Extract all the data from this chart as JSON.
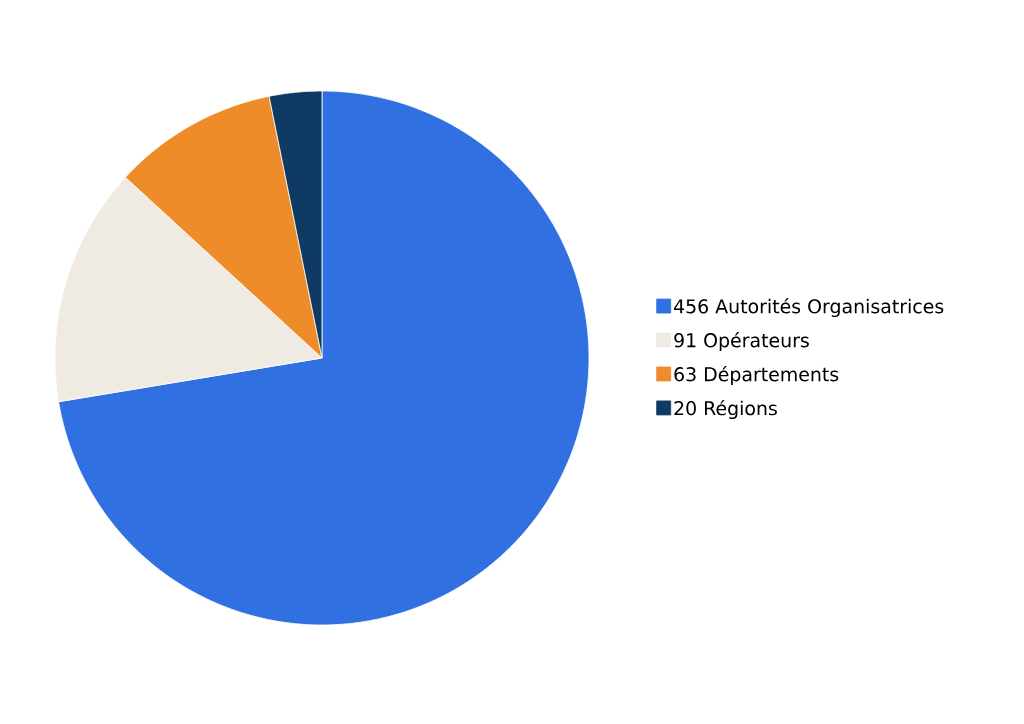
{
  "chart_data": {
    "type": "pie",
    "categories": [
      "456 Autorités Organisatrices",
      "91 Opérateurs",
      "63 Départements",
      "20 Régions"
    ],
    "values": [
      456,
      91,
      63,
      20
    ],
    "colors": [
      "#3070e0",
      "#efebe2",
      "#ef8c2a",
      "#0f3a63"
    ],
    "legend": "right"
  }
}
